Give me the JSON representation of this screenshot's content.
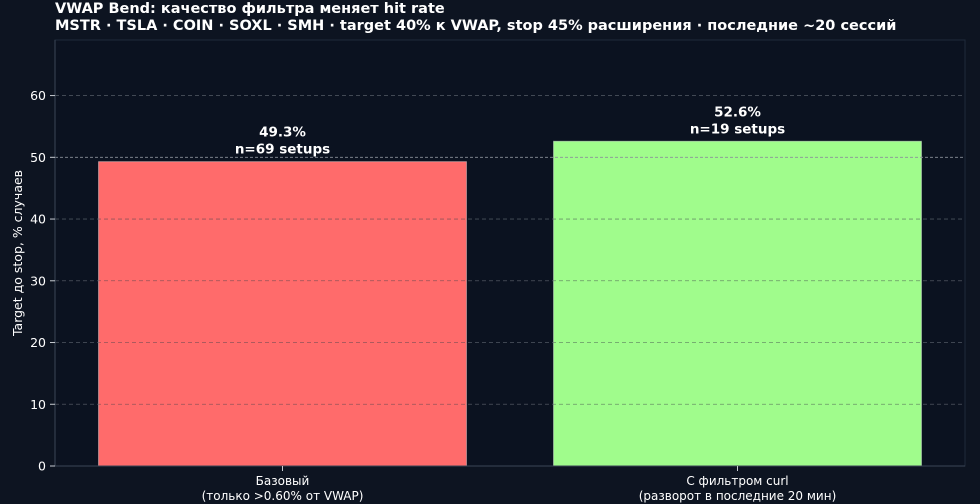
{
  "title": "VWAP Bend: качество фильтра меняет hit rate",
  "subtitle": "MSTR · TSLA · COIN · SOXL · SMH  ·  target 40% к VWAP, stop 45% расширения  ·  последние ~20 сессий",
  "colors": {
    "background": "#0d1421",
    "plot_background": "#0b1220",
    "bar_base": "#ff6b6b",
    "bar_filter": "#a0fc8c",
    "grid": "#555e6a",
    "reference_line": "#8a9099",
    "text": "#ffffff"
  },
  "chart_data": {
    "type": "bar",
    "title": "VWAP Bend: качество фильтра меняет hit rate",
    "subtitle": "MSTR · TSLA · COIN · SOXL · SMH  ·  target 40% к VWAP, stop 45% расширения  ·  последние ~20 сессий",
    "ylabel": "Target до stop, % случаев",
    "xlabel": "",
    "ylim": [
      0,
      69
    ],
    "yticks": [
      0,
      10,
      20,
      30,
      40,
      50,
      60
    ],
    "grid": true,
    "reference_line": 50,
    "categories": [
      [
        "Базовый",
        "(только >0.60% от VWAP)"
      ],
      [
        "С фильтром curl",
        "(разворот в последние 20 мин)"
      ]
    ],
    "values": [
      49.3,
      52.6
    ],
    "bar_labels": [
      [
        "49.3%",
        "n=69 setups"
      ],
      [
        "52.6%",
        "n=19 setups"
      ]
    ],
    "bar_colors": [
      "#ff6b6b",
      "#a0fc8c"
    ]
  }
}
